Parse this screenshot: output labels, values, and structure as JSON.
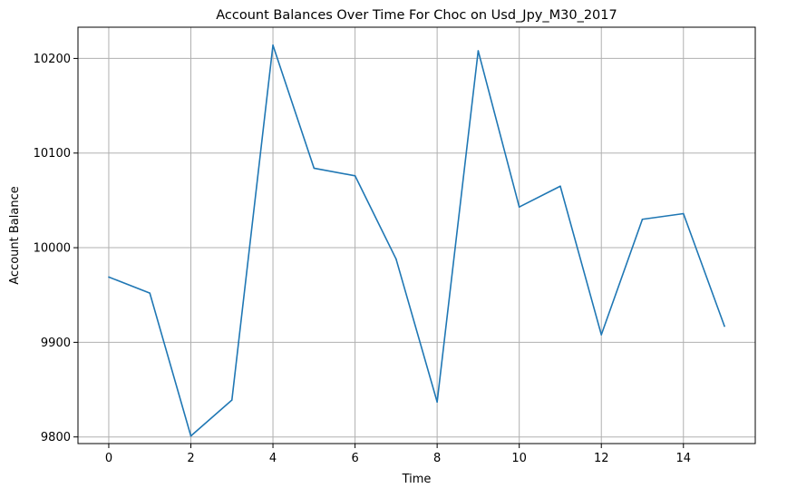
{
  "chart_data": {
    "type": "line",
    "title": "Account Balances Over Time For Choc on Usd_Jpy_M30_2017",
    "xlabel": "Time",
    "ylabel": "Account Balance",
    "x": [
      0,
      1,
      2,
      3,
      4,
      5,
      6,
      7,
      8,
      9,
      10,
      11,
      12,
      13,
      14,
      15
    ],
    "series": [
      {
        "values": [
          9969,
          9952,
          9801,
          9839,
          10214,
          10084,
          10076,
          9988,
          9837,
          10208,
          10043,
          10065,
          9908,
          10030,
          10036,
          9917
        ]
      }
    ],
    "xlim": [
      -0.75,
      15.75
    ],
    "ylim": [
      9793,
      10233
    ],
    "xticks": [
      0,
      2,
      4,
      6,
      8,
      10,
      12,
      14
    ],
    "yticks": [
      9800,
      9900,
      10000,
      10100,
      10200
    ],
    "xtick_labels": [
      "0",
      "2",
      "4",
      "6",
      "8",
      "10",
      "12",
      "14"
    ],
    "ytick_labels": [
      "9800",
      "9900",
      "10000",
      "10100",
      "10200"
    ],
    "grid": true,
    "line_color": "#1f77b4",
    "grid_color": "#b0b0b0"
  }
}
